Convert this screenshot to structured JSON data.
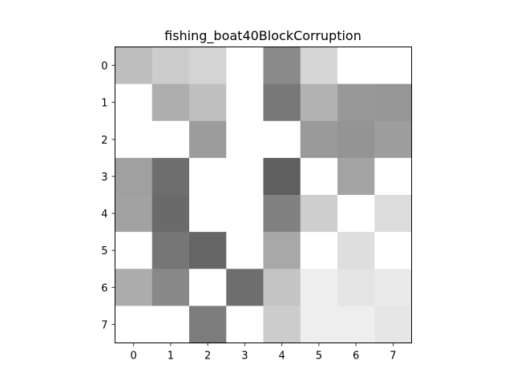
{
  "chart_data": {
    "type": "heatmap",
    "title": "fishing_boat40BlockCorruption",
    "xlabel": "",
    "ylabel": "",
    "colormap": "gray",
    "value_range": [
      0,
      255
    ],
    "x_ticks": [
      "0",
      "1",
      "2",
      "3",
      "4",
      "5",
      "6",
      "7"
    ],
    "y_ticks": [
      "0",
      "1",
      "2",
      "3",
      "4",
      "5",
      "6",
      "7"
    ],
    "grid": false,
    "values": [
      [
        190,
        204,
        212,
        255,
        138,
        214,
        255,
        255
      ],
      [
        255,
        174,
        192,
        255,
        120,
        178,
        152,
        150
      ],
      [
        255,
        255,
        156,
        255,
        255,
        154,
        148,
        158
      ],
      [
        160,
        110,
        255,
        255,
        95,
        255,
        164,
        255
      ],
      [
        162,
        106,
        255,
        255,
        128,
        206,
        255,
        220
      ],
      [
        255,
        118,
        102,
        255,
        168,
        255,
        222,
        255
      ],
      [
        172,
        136,
        255,
        110,
        196,
        238,
        228,
        234
      ],
      [
        255,
        255,
        124,
        255,
        204,
        238,
        238,
        230
      ]
    ]
  }
}
